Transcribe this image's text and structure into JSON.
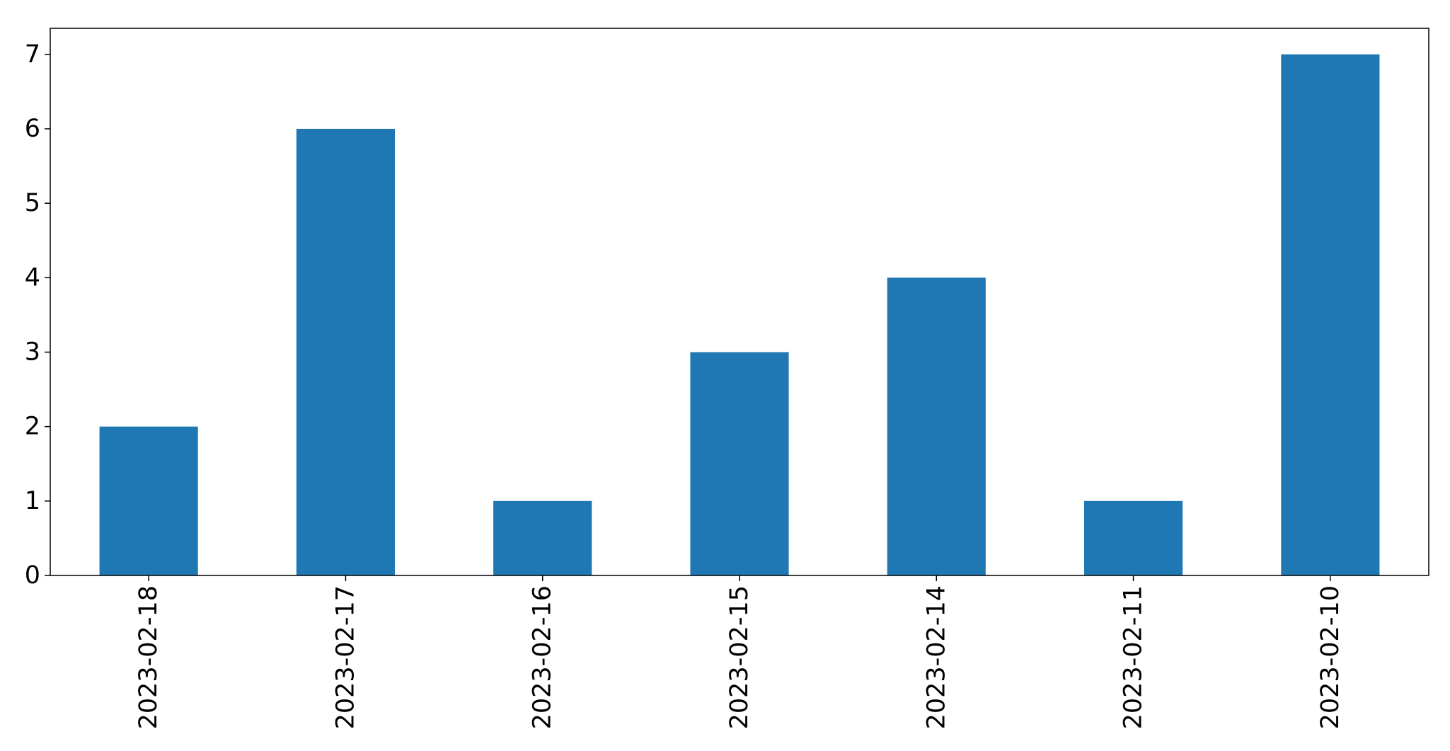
{
  "chart_data": {
    "type": "bar",
    "categories": [
      "2023-02-18",
      "2023-02-17",
      "2023-02-16",
      "2023-02-15",
      "2023-02-14",
      "2023-02-11",
      "2023-02-10"
    ],
    "values": [
      2,
      6,
      1,
      3,
      4,
      1,
      7
    ],
    "title": "",
    "xlabel": "",
    "ylabel": "",
    "ylim": [
      0,
      7.35
    ],
    "yticks": [
      0,
      1,
      2,
      3,
      4,
      5,
      6,
      7
    ],
    "grid": false,
    "legend": "none",
    "bar_color": "#1f77b4"
  }
}
